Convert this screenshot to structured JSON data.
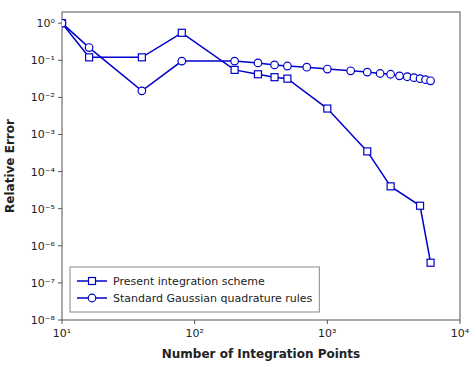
{
  "chart_data": {
    "type": "line",
    "log": true,
    "grid": false,
    "legend": "lower left",
    "xlabel": "Number of Integration Points",
    "ylabel": "Relative Error",
    "xlim": [
      10,
      10000
    ],
    "ylim": [
      1e-08,
      2
    ],
    "xticks": [
      {
        "value": 10,
        "label": "10¹"
      },
      {
        "value": 100,
        "label": "10²"
      },
      {
        "value": 1000,
        "label": "10³"
      },
      {
        "value": 10000,
        "label": "10⁴"
      }
    ],
    "yticks": [
      {
        "value": 1e-08,
        "label": "10⁻⁸"
      },
      {
        "value": 1e-07,
        "label": "10⁻⁷"
      },
      {
        "value": 1e-06,
        "label": "10⁻⁶"
      },
      {
        "value": 1e-05,
        "label": "10⁻⁵"
      },
      {
        "value": 0.0001,
        "label": "10⁻⁴"
      },
      {
        "value": 0.001,
        "label": "10⁻³"
      },
      {
        "value": 0.01,
        "label": "10⁻²"
      },
      {
        "value": 0.1,
        "label": "10⁻¹"
      },
      {
        "value": 1,
        "label": "10⁰"
      }
    ],
    "series": [
      {
        "name": "Present integration scheme",
        "color": "#0000cc",
        "marker": "square",
        "x": [
          10,
          16,
          40,
          80,
          200,
          300,
          400,
          500,
          1000,
          2000,
          3000,
          5000,
          6000
        ],
        "values": [
          1.0,
          0.12,
          0.12,
          0.55,
          0.055,
          0.042,
          0.035,
          0.032,
          0.005,
          0.00035,
          4e-05,
          1.2e-05,
          3.5e-07
        ]
      },
      {
        "name": "Standard Gaussian quadrature rules",
        "color": "#0000cc",
        "marker": "circle",
        "x": [
          10,
          16,
          40,
          80,
          200,
          300,
          400,
          500,
          700,
          1000,
          1500,
          2000,
          2500,
          3000,
          3500,
          4000,
          4500,
          5000,
          5500,
          6000
        ],
        "values": [
          1.0,
          0.22,
          0.015,
          0.095,
          0.095,
          0.085,
          0.075,
          0.07,
          0.065,
          0.058,
          0.052,
          0.048,
          0.044,
          0.042,
          0.038,
          0.036,
          0.034,
          0.032,
          0.03,
          0.028
        ]
      }
    ]
  }
}
